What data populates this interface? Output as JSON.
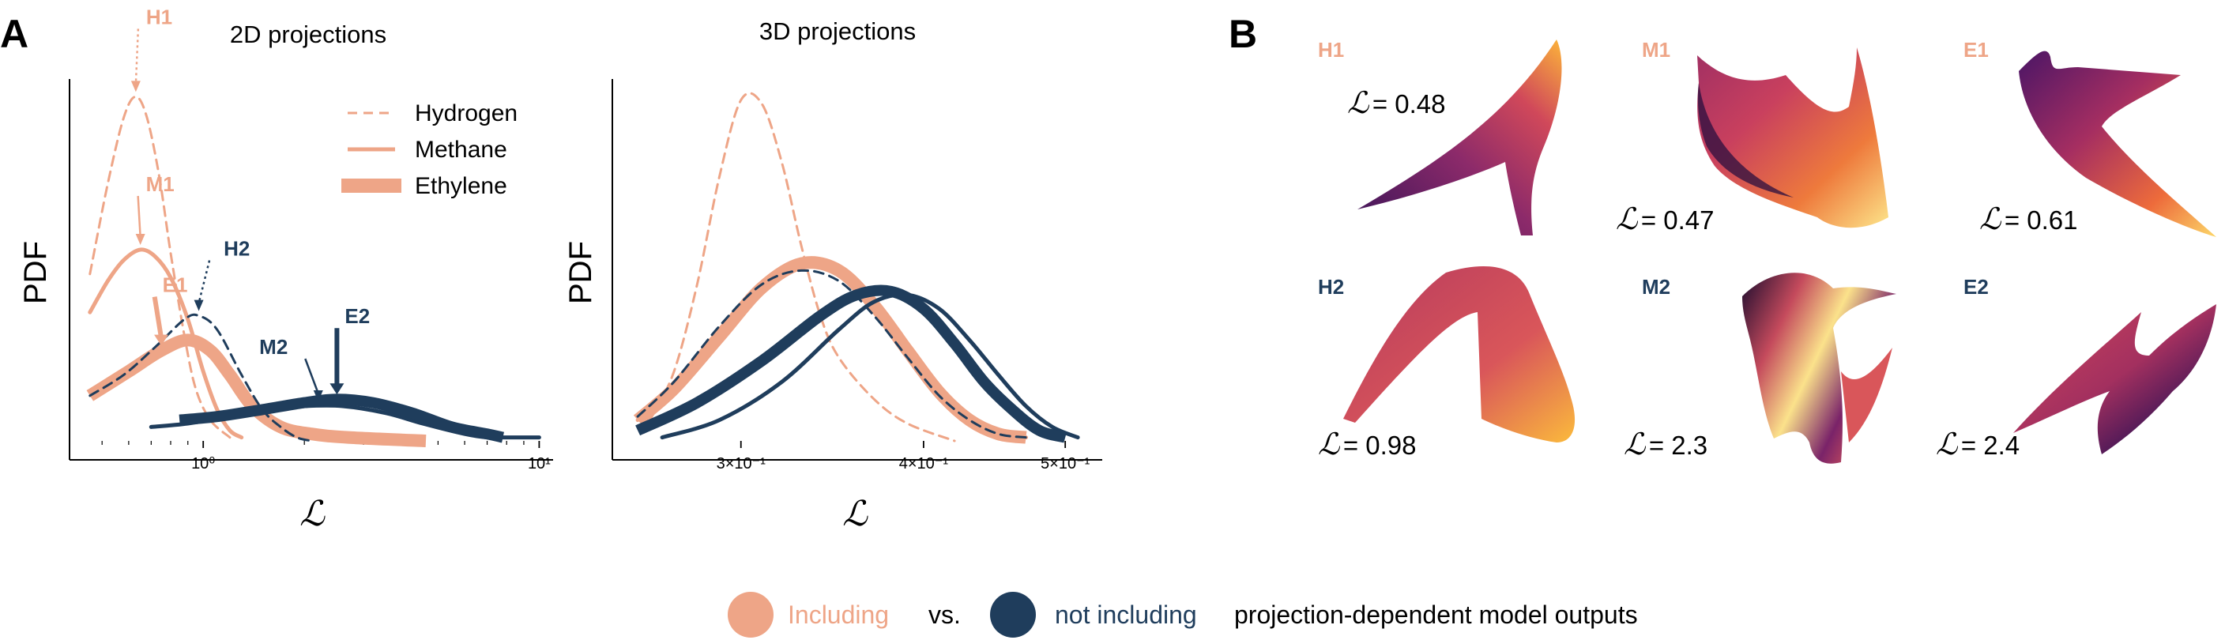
{
  "panel_a": {
    "letter": "A",
    "subtitle_left": "2D projections",
    "subtitle_right": "3D projections"
  },
  "panel_b": {
    "letter": "B"
  },
  "colors": {
    "including": "#eea587",
    "not_including": "#1f3d5c"
  },
  "chart_data": [
    {
      "type": "line",
      "title": "2D projections",
      "xlabel": "ℒ",
      "ylabel": "PDF",
      "xscale": "log",
      "xlim": [
        0.4,
        11
      ],
      "x_ticks": [
        {
          "value": 1,
          "label": "10⁰"
        },
        {
          "value": 10,
          "label": "10¹"
        }
      ],
      "legend": {
        "placement": "top-right",
        "entries": [
          {
            "label": "Hydrogen",
            "style": "dashed"
          },
          {
            "label": "Methane",
            "style": "thin"
          },
          {
            "label": "Ethylene",
            "style": "thick"
          }
        ]
      },
      "series": [
        {
          "molecule": "Hydrogen",
          "group": "including",
          "style": "dashed",
          "x": [
            0.46,
            0.52,
            0.58,
            0.63,
            0.68,
            0.74,
            0.8,
            0.88,
            0.95,
            1.05,
            1.2
          ],
          "y": [
            0.48,
            0.74,
            0.93,
            0.99,
            0.93,
            0.76,
            0.54,
            0.3,
            0.15,
            0.06,
            0.01
          ]
        },
        {
          "molecule": "Methane",
          "group": "including",
          "style": "thin",
          "x": [
            0.46,
            0.52,
            0.58,
            0.65,
            0.72,
            0.8,
            0.9,
            1.0,
            1.1,
            1.2,
            1.3
          ],
          "y": [
            0.37,
            0.46,
            0.52,
            0.55,
            0.53,
            0.47,
            0.35,
            0.2,
            0.09,
            0.03,
            0.01
          ]
        },
        {
          "molecule": "Ethylene",
          "group": "including",
          "style": "thick",
          "x": [
            0.46,
            0.6,
            0.75,
            0.9,
            1.05,
            1.2,
            1.4,
            1.7,
            2.1,
            2.7,
            4.6
          ],
          "y": [
            0.13,
            0.2,
            0.26,
            0.29,
            0.26,
            0.19,
            0.1,
            0.04,
            0.02,
            0.01,
            0.0
          ]
        },
        {
          "molecule": "Hydrogen",
          "group": "not including",
          "style": "dashed",
          "x": [
            0.46,
            0.58,
            0.72,
            0.88,
            0.97,
            1.1,
            1.3,
            1.5,
            1.7,
            1.9,
            2.1
          ],
          "y": [
            0.13,
            0.19,
            0.27,
            0.35,
            0.36,
            0.32,
            0.19,
            0.09,
            0.04,
            0.01,
            0.0
          ]
        },
        {
          "molecule": "Methane",
          "group": "not including",
          "style": "thin",
          "x": [
            0.7,
            0.9,
            1.2,
            1.6,
            2.0,
            2.6,
            3.5,
            4.5,
            6.0,
            7.0,
            8.0,
            10.0
          ],
          "y": [
            0.04,
            0.05,
            0.07,
            0.09,
            0.1,
            0.1,
            0.08,
            0.05,
            0.02,
            0.01,
            0.01,
            0.01
          ]
        },
        {
          "molecule": "Ethylene",
          "group": "not including",
          "style": "thick",
          "x": [
            0.85,
            1.1,
            1.5,
            2.0,
            2.5,
            3.2,
            4.2,
            5.5,
            7.0,
            7.8
          ],
          "y": [
            0.06,
            0.07,
            0.09,
            0.11,
            0.12,
            0.11,
            0.08,
            0.04,
            0.02,
            0.01
          ]
        }
      ],
      "annotations": [
        {
          "text": "H1",
          "group": "including",
          "x": 0.63,
          "y": 0.99
        },
        {
          "text": "M1",
          "group": "including",
          "x": 0.65,
          "y": 0.55
        },
        {
          "text": "E1",
          "group": "including",
          "x": 0.75,
          "y": 0.26
        },
        {
          "text": "H2",
          "group": "not including",
          "x": 0.97,
          "y": 0.36
        },
        {
          "text": "M2",
          "group": "not including",
          "x": 2.2,
          "y": 0.1
        },
        {
          "text": "E2",
          "group": "not including",
          "x": 2.5,
          "y": 0.12
        }
      ]
    },
    {
      "type": "line",
      "title": "3D projections",
      "xlabel": "ℒ",
      "ylabel": "PDF",
      "xscale": "log",
      "xlim": [
        0.245,
        0.53
      ],
      "x_ticks": [
        {
          "value": 0.3,
          "label": "3×10⁻¹"
        },
        {
          "value": 0.4,
          "label": "4×10⁻¹"
        },
        {
          "value": 0.5,
          "label": "5×10⁻¹"
        }
      ],
      "series": [
        {
          "molecule": "Hydrogen",
          "group": "including",
          "style": "dashed",
          "x": [
            0.26,
            0.27,
            0.28,
            0.29,
            0.3,
            0.31,
            0.32,
            0.33,
            0.34,
            0.35,
            0.37,
            0.39,
            0.42
          ],
          "y": [
            0.06,
            0.2,
            0.45,
            0.76,
            0.98,
            0.97,
            0.8,
            0.56,
            0.36,
            0.24,
            0.12,
            0.05,
            0.0
          ]
        },
        {
          "molecule": "Methane",
          "group": "including",
          "style": "thin",
          "x": [
            0.255,
            0.27,
            0.29,
            0.31,
            0.33,
            0.35,
            0.37,
            0.39,
            0.41,
            0.43,
            0.45,
            0.47
          ],
          "y": [
            0.06,
            0.16,
            0.32,
            0.45,
            0.52,
            0.5,
            0.4,
            0.27,
            0.15,
            0.07,
            0.02,
            0.01
          ]
        },
        {
          "molecule": "Ethylene",
          "group": "including",
          "style": "thick",
          "x": [
            0.255,
            0.27,
            0.29,
            0.31,
            0.33,
            0.35,
            0.37,
            0.39,
            0.41,
            0.43,
            0.45,
            0.47
          ],
          "y": [
            0.06,
            0.15,
            0.3,
            0.44,
            0.51,
            0.49,
            0.39,
            0.26,
            0.14,
            0.06,
            0.02,
            0.01
          ]
        },
        {
          "molecule": "Hydrogen",
          "group": "not including",
          "style": "dashed",
          "x": [
            0.255,
            0.27,
            0.29,
            0.31,
            0.33,
            0.35,
            0.37,
            0.39,
            0.41,
            0.43,
            0.45,
            0.47
          ],
          "y": [
            0.07,
            0.17,
            0.33,
            0.45,
            0.49,
            0.46,
            0.36,
            0.24,
            0.13,
            0.06,
            0.02,
            0.01
          ]
        },
        {
          "molecule": "Methane",
          "group": "not including",
          "style": "thin",
          "x": [
            0.265,
            0.29,
            0.32,
            0.35,
            0.37,
            0.39,
            0.41,
            0.43,
            0.45,
            0.47,
            0.49,
            0.51
          ],
          "y": [
            0.01,
            0.06,
            0.17,
            0.32,
            0.4,
            0.42,
            0.38,
            0.29,
            0.19,
            0.1,
            0.04,
            0.01
          ]
        },
        {
          "molecule": "Ethylene",
          "group": "not including",
          "style": "thick",
          "x": [
            0.255,
            0.28,
            0.31,
            0.34,
            0.36,
            0.38,
            0.4,
            0.42,
            0.44,
            0.46,
            0.48,
            0.5
          ],
          "y": [
            0.03,
            0.11,
            0.23,
            0.36,
            0.42,
            0.43,
            0.38,
            0.28,
            0.17,
            0.09,
            0.03,
            0.01
          ]
        }
      ]
    }
  ],
  "thumbnails": [
    {
      "tag": "H1",
      "group": "including",
      "loss_symbol": "ℒ",
      "loss_value": "= 0.48"
    },
    {
      "tag": "M1",
      "group": "including",
      "loss_symbol": "ℒ",
      "loss_value": "= 0.47"
    },
    {
      "tag": "E1",
      "group": "including",
      "loss_symbol": "ℒ",
      "loss_value": "= 0.61"
    },
    {
      "tag": "H2",
      "group": "not including",
      "loss_symbol": "ℒ",
      "loss_value": "= 0.98"
    },
    {
      "tag": "M2",
      "group": "not including",
      "loss_symbol": "ℒ",
      "loss_value": "= 2.3"
    },
    {
      "tag": "E2",
      "group": "not including",
      "loss_symbol": "ℒ",
      "loss_value": "= 2.4"
    }
  ],
  "footer": {
    "including_label": "Including",
    "vs_label": "vs.",
    "not_including_label": "not including",
    "suffix_label": "projection-dependent model outputs"
  }
}
